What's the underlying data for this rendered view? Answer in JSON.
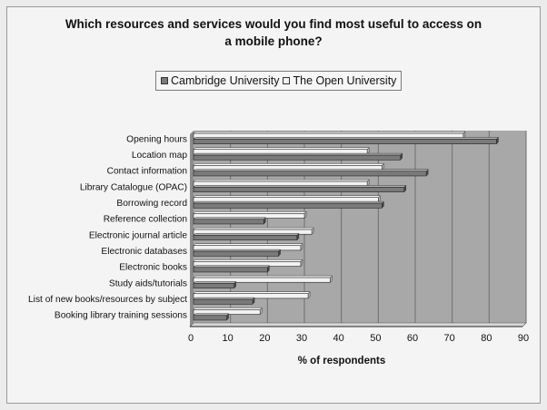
{
  "chart_data": {
    "type": "bar",
    "orientation": "horizontal",
    "title": "Which resources and services would you find most useful to access on a mobile phone?",
    "title_lines": [
      "Which resources and services would you find most useful to access on",
      "a mobile phone?"
    ],
    "xlabel": "% of respondents",
    "ylabel": "",
    "xlim": [
      0,
      90
    ],
    "xticks": [
      "0",
      "10",
      "20",
      "30",
      "40",
      "50",
      "60",
      "70",
      "80",
      "90"
    ],
    "grid": true,
    "legend_position": "top",
    "categories": [
      "Opening hours",
      "Location map",
      "Contact information",
      "Library Catalogue (OPAC)",
      "Borrowing record",
      "Reference collection",
      "Electronic journal article",
      "Electronic databases",
      "Electronic books",
      "Study aids/tutorials",
      "List of new books/resources by subject",
      "Booking library training sessions"
    ],
    "series": [
      {
        "name": "Cambridge University",
        "color": "#7a7a7a",
        "values": [
          82,
          56,
          63,
          57,
          51,
          19,
          28,
          23,
          20,
          11,
          16,
          9
        ]
      },
      {
        "name": "The Open University",
        "color": "#f2f2f2",
        "values": [
          73,
          47,
          51,
          47,
          50,
          30,
          32,
          29,
          29,
          37,
          31,
          18
        ]
      }
    ]
  },
  "colors": {
    "plot_background": "#a8a8a8",
    "gridline": "#6e6e6e"
  }
}
